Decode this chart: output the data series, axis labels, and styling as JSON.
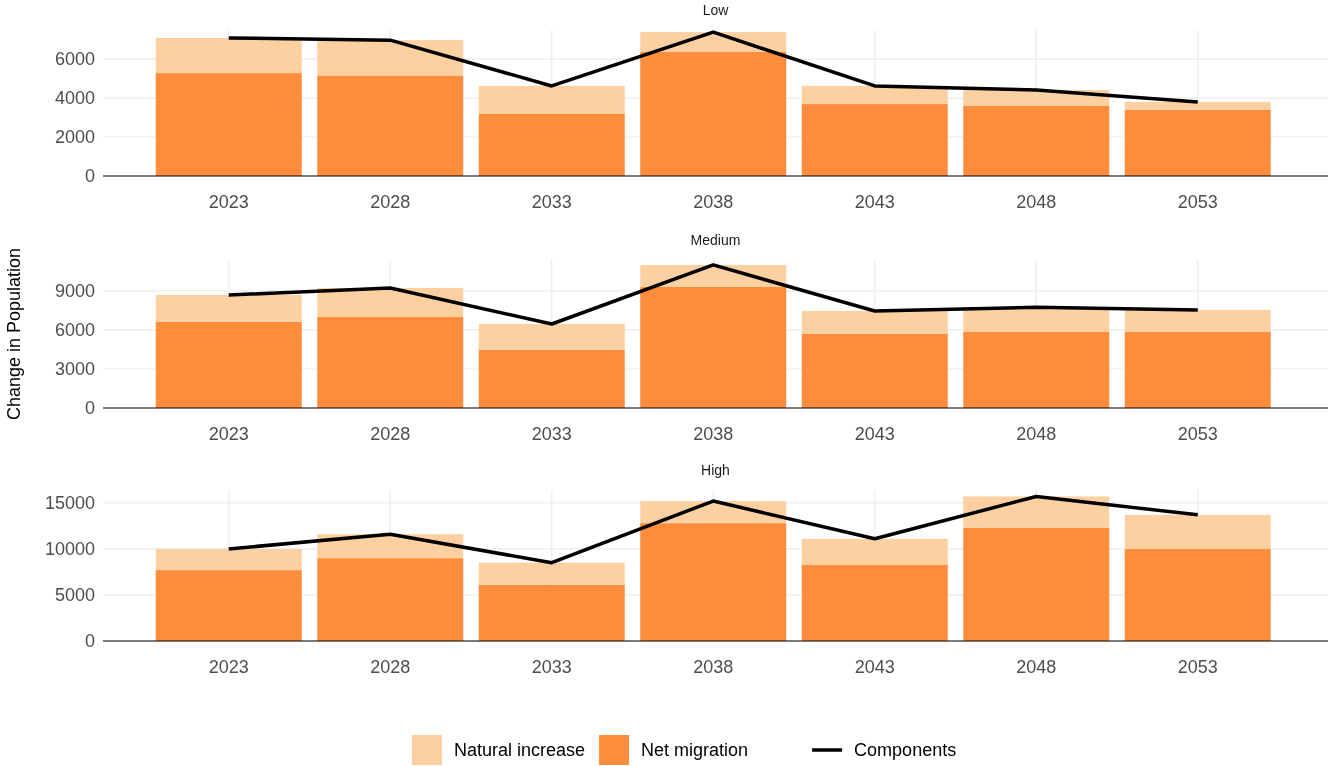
{
  "chart_data": [
    {
      "type": "bar",
      "title": "Low",
      "stacked": true,
      "grid": true,
      "legend": "bottom",
      "categories": [
        "2023",
        "2028",
        "2033",
        "2038",
        "2043",
        "2048",
        "2053"
      ],
      "ylim": [
        0,
        7490
      ],
      "yticks": [
        0,
        2000,
        4000,
        6000
      ],
      "series": [
        {
          "name": "Net migration",
          "color": "#fd8d3c",
          "values": [
            5280,
            5130,
            3180,
            6360,
            3690,
            3590,
            3390
          ]
        },
        {
          "name": "Natural increase",
          "color": "#fdd0a2",
          "values": [
            1800,
            1840,
            1440,
            1020,
            930,
            820,
            410
          ]
        },
        {
          "name": "Components",
          "type": "line",
          "color": "#000000",
          "values": [
            7080,
            6970,
            4620,
            7380,
            4620,
            4410,
            3800
          ]
        }
      ]
    },
    {
      "type": "bar",
      "title": "Medium",
      "ylabel": "Change in Population",
      "stacked": true,
      "grid": true,
      "legend": "bottom",
      "categories": [
        "2023",
        "2028",
        "2033",
        "2038",
        "2043",
        "2048",
        "2053"
      ],
      "ylim": [
        0,
        11380
      ],
      "yticks": [
        0,
        3000,
        6000,
        9000
      ],
      "series": [
        {
          "name": "Net migration",
          "color": "#fd8d3c",
          "values": [
            6620,
            7000,
            4460,
            9310,
            5690,
            5850,
            5850
          ]
        },
        {
          "name": "Natural increase",
          "color": "#fdd0a2",
          "values": [
            2070,
            2230,
            2000,
            1690,
            1770,
            1900,
            1690
          ]
        },
        {
          "name": "Components",
          "type": "line",
          "color": "#000000",
          "values": [
            8690,
            9230,
            6460,
            11000,
            7460,
            7750,
            7540
          ]
        }
      ]
    },
    {
      "type": "bar",
      "title": "High",
      "stacked": true,
      "grid": true,
      "legend": "bottom",
      "categories": [
        "2023",
        "2028",
        "2033",
        "2038",
        "2043",
        "2048",
        "2053"
      ],
      "ylim": [
        0,
        16400
      ],
      "yticks": [
        0,
        5000,
        10000,
        15000
      ],
      "series": [
        {
          "name": "Net migration",
          "color": "#fd8d3c",
          "values": [
            7700,
            9000,
            6100,
            12800,
            8300,
            12300,
            10000
          ]
        },
        {
          "name": "Natural increase",
          "color": "#fdd0a2",
          "values": [
            2300,
            2600,
            2400,
            2400,
            2800,
            3400,
            3700
          ]
        },
        {
          "name": "Components",
          "type": "line",
          "color": "#000000",
          "values": [
            10000,
            11600,
            8500,
            15200,
            11100,
            15700,
            13700
          ]
        }
      ]
    }
  ]
}
